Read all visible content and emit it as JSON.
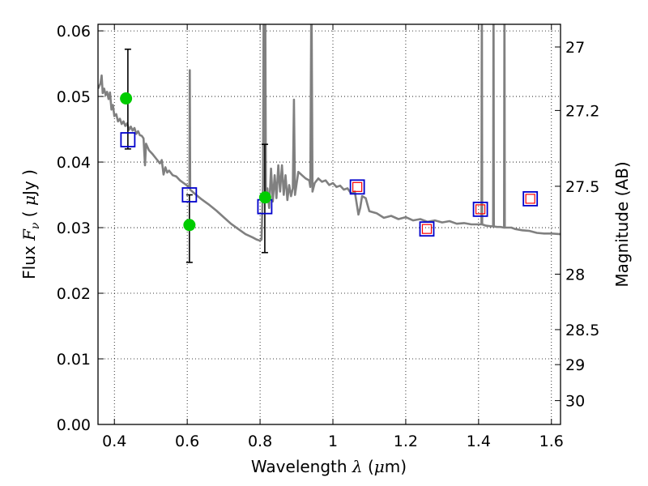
{
  "chart_data": {
    "type": "line",
    "xlabel": {
      "prefix": "Wavelength  ",
      "symbol": "λ",
      "unit_open": " (",
      "unit_sym": "μ",
      "unit_rest": "m)"
    },
    "ylabel": {
      "prefix": "Flux  ",
      "symbol": "F",
      "sub": "ν",
      "unit_open": "  (  ",
      "unit_sym": "μ",
      "unit_rest": "Jy  )"
    },
    "y2label": "Magnitude (AB)",
    "xlim": [
      0.355,
      1.625
    ],
    "ylim": [
      0.0,
      0.061
    ],
    "grid": true,
    "x_ticks": [
      {
        "v": 0.4,
        "label": "0.4"
      },
      {
        "v": 0.6,
        "label": "0.6"
      },
      {
        "v": 0.8,
        "label": "0.8"
      },
      {
        "v": 1.0,
        "label": "1"
      },
      {
        "v": 1.2,
        "label": "1.2"
      },
      {
        "v": 1.4,
        "label": "1.4"
      },
      {
        "v": 1.6,
        "label": "1.6"
      }
    ],
    "y_ticks": [
      {
        "v": 0.0,
        "label": "0.00"
      },
      {
        "v": 0.01,
        "label": "0.01"
      },
      {
        "v": 0.02,
        "label": "0.02"
      },
      {
        "v": 0.03,
        "label": "0.03"
      },
      {
        "v": 0.04,
        "label": "0.04"
      },
      {
        "v": 0.05,
        "label": "0.05"
      },
      {
        "v": 0.06,
        "label": "0.06"
      }
    ],
    "mag_ticks": [
      {
        "mag": 27,
        "label": "27"
      },
      {
        "mag": 27.2,
        "label": "27.2"
      },
      {
        "mag": 27.5,
        "label": "27.5"
      },
      {
        "mag": 28,
        "label": "28"
      },
      {
        "mag": 28.5,
        "label": "28.5"
      },
      {
        "mag": 29,
        "label": "29"
      },
      {
        "mag": 30,
        "label": "30"
      }
    ],
    "model_spectrum": {
      "color": "#808080",
      "points": [
        [
          0.355,
          0.0512
        ],
        [
          0.362,
          0.052
        ],
        [
          0.365,
          0.0532
        ],
        [
          0.368,
          0.0505
        ],
        [
          0.372,
          0.0512
        ],
        [
          0.376,
          0.0502
        ],
        [
          0.38,
          0.0507
        ],
        [
          0.384,
          0.0496
        ],
        [
          0.388,
          0.0506
        ],
        [
          0.392,
          0.048
        ],
        [
          0.396,
          0.0487
        ],
        [
          0.4,
          0.047
        ],
        [
          0.405,
          0.0473
        ],
        [
          0.41,
          0.0462
        ],
        [
          0.415,
          0.0466
        ],
        [
          0.42,
          0.0458
        ],
        [
          0.425,
          0.0462
        ],
        [
          0.43,
          0.0455
        ],
        [
          0.435,
          0.0459
        ],
        [
          0.44,
          0.0449
        ],
        [
          0.445,
          0.0454
        ],
        [
          0.45,
          0.0448
        ],
        [
          0.455,
          0.0452
        ],
        [
          0.46,
          0.0443
        ],
        [
          0.465,
          0.0447
        ],
        [
          0.47,
          0.0441
        ],
        [
          0.475,
          0.044
        ],
        [
          0.48,
          0.0436
        ],
        [
          0.484,
          0.0395
        ],
        [
          0.487,
          0.0428
        ],
        [
          0.495,
          0.0418
        ],
        [
          0.505,
          0.0412
        ],
        [
          0.515,
          0.0405
        ],
        [
          0.525,
          0.0398
        ],
        [
          0.53,
          0.0403
        ],
        [
          0.535,
          0.0381
        ],
        [
          0.54,
          0.0392
        ],
        [
          0.545,
          0.0384
        ],
        [
          0.55,
          0.0387
        ],
        [
          0.56,
          0.038
        ],
        [
          0.57,
          0.0378
        ],
        [
          0.58,
          0.0372
        ],
        [
          0.59,
          0.0368
        ],
        [
          0.6,
          0.0364
        ],
        [
          0.606,
          0.0362
        ],
        [
          0.607,
          0.054
        ],
        [
          0.608,
          0.0358
        ],
        [
          0.62,
          0.0352
        ],
        [
          0.64,
          0.0343
        ],
        [
          0.66,
          0.0335
        ],
        [
          0.68,
          0.0326
        ],
        [
          0.7,
          0.0316
        ],
        [
          0.72,
          0.0306
        ],
        [
          0.74,
          0.0298
        ],
        [
          0.76,
          0.029
        ],
        [
          0.78,
          0.0285
        ],
        [
          0.79,
          0.0282
        ],
        [
          0.8,
          0.028
        ],
        [
          0.804,
          0.0282
        ],
        [
          0.806,
          0.0325
        ],
        [
          0.808,
          0.0365
        ],
        [
          0.81,
          0.068
        ],
        [
          0.812,
          0.042
        ],
        [
          0.814,
          0.068
        ],
        [
          0.816,
          0.034
        ],
        [
          0.82,
          0.036
        ],
        [
          0.825,
          0.033
        ],
        [
          0.83,
          0.039
        ],
        [
          0.835,
          0.034
        ],
        [
          0.84,
          0.038
        ],
        [
          0.845,
          0.0345
        ],
        [
          0.85,
          0.0395
        ],
        [
          0.855,
          0.0355
        ],
        [
          0.86,
          0.0395
        ],
        [
          0.865,
          0.035
        ],
        [
          0.87,
          0.038
        ],
        [
          0.875,
          0.0342
        ],
        [
          0.88,
          0.0365
        ],
        [
          0.885,
          0.0348
        ],
        [
          0.89,
          0.036
        ],
        [
          0.893,
          0.0495
        ],
        [
          0.896,
          0.035
        ],
        [
          0.905,
          0.0385
        ],
        [
          0.915,
          0.038
        ],
        [
          0.925,
          0.0375
        ],
        [
          0.935,
          0.0372
        ],
        [
          0.938,
          0.0362
        ],
        [
          0.941,
          0.068
        ],
        [
          0.944,
          0.0355
        ],
        [
          0.95,
          0.0368
        ],
        [
          0.96,
          0.0375
        ],
        [
          0.97,
          0.037
        ],
        [
          0.98,
          0.0372
        ],
        [
          0.99,
          0.0365
        ],
        [
          1.0,
          0.0368
        ],
        [
          1.01,
          0.0362
        ],
        [
          1.02,
          0.0364
        ],
        [
          1.03,
          0.0358
        ],
        [
          1.04,
          0.036
        ],
        [
          1.05,
          0.0352
        ],
        [
          1.06,
          0.0355
        ],
        [
          1.07,
          0.032
        ],
        [
          1.075,
          0.033
        ],
        [
          1.08,
          0.0348
        ],
        [
          1.09,
          0.0345
        ],
        [
          1.095,
          0.0335
        ],
        [
          1.1,
          0.0325
        ],
        [
          1.12,
          0.0322
        ],
        [
          1.14,
          0.0315
        ],
        [
          1.16,
          0.0318
        ],
        [
          1.18,
          0.0313
        ],
        [
          1.2,
          0.0316
        ],
        [
          1.22,
          0.0311
        ],
        [
          1.24,
          0.0313
        ],
        [
          1.26,
          0.0309
        ],
        [
          1.28,
          0.0311
        ],
        [
          1.3,
          0.0308
        ],
        [
          1.32,
          0.031
        ],
        [
          1.34,
          0.0306
        ],
        [
          1.36,
          0.0307
        ],
        [
          1.38,
          0.0305
        ],
        [
          1.4,
          0.0305
        ],
        [
          1.408,
          0.0305
        ],
        [
          1.409,
          0.068
        ],
        [
          1.41,
          0.0305
        ],
        [
          1.42,
          0.0303
        ],
        [
          1.435,
          0.0302
        ],
        [
          1.44,
          0.0302
        ],
        [
          1.441,
          0.068
        ],
        [
          1.442,
          0.0302
        ],
        [
          1.45,
          0.0301
        ],
        [
          1.46,
          0.0301
        ],
        [
          1.47,
          0.03
        ],
        [
          1.471,
          0.068
        ],
        [
          1.472,
          0.03
        ],
        [
          1.49,
          0.03
        ],
        [
          1.5,
          0.0298
        ],
        [
          1.52,
          0.0296
        ],
        [
          1.54,
          0.0295
        ],
        [
          1.56,
          0.0292
        ],
        [
          1.58,
          0.0291
        ],
        [
          1.6,
          0.0291
        ],
        [
          1.625,
          0.029
        ]
      ]
    },
    "observed": {
      "color": "#00cc00",
      "points": [
        {
          "x": 0.432,
          "y": 0.0497,
          "err": null
        },
        {
          "x": 0.606,
          "y": 0.0304,
          "err": null
        },
        {
          "x": 0.814,
          "y": 0.0346,
          "err": null
        }
      ]
    },
    "model_photometry": {
      "color": "#0000cc",
      "points": [
        {
          "x": 0.437,
          "y": 0.0434,
          "err_low": 0.042,
          "err_high": 0.0572
        },
        {
          "x": 0.606,
          "y": 0.035,
          "err_low": 0.0247,
          "err_high": 0.035
        },
        {
          "x": 0.813,
          "y": 0.0332,
          "err_low": 0.0262,
          "err_high": 0.0427
        },
        {
          "x": 1.067,
          "y": 0.0362,
          "err_low": null,
          "err_high": null
        },
        {
          "x": 1.258,
          "y": 0.0298,
          "err_low": null,
          "err_high": null
        },
        {
          "x": 1.405,
          "y": 0.0328,
          "err_low": null,
          "err_high": null
        },
        {
          "x": 1.542,
          "y": 0.0344,
          "err_low": null,
          "err_high": null
        }
      ]
    },
    "upper_limits": {
      "color": "#ff0000",
      "points": [
        {
          "x": 1.067,
          "y": 0.0362
        },
        {
          "x": 1.258,
          "y": 0.0298
        },
        {
          "x": 1.405,
          "y": 0.0328
        },
        {
          "x": 1.542,
          "y": 0.0344
        }
      ]
    }
  }
}
